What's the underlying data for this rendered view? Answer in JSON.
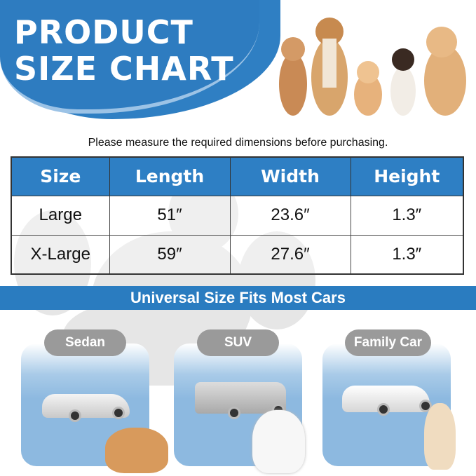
{
  "header": {
    "title_line1": "PRODUCT",
    "title_line2": "SIZE CHART"
  },
  "subtitle": "Please measure the required dimensions before purchasing.",
  "table": {
    "headers": [
      "Size",
      "Length",
      "Width",
      "Height"
    ],
    "rows": [
      [
        "Large",
        "51″",
        "23.6″",
        "1.3″"
      ],
      [
        "X-Large",
        "59″",
        "27.6″",
        "1.3″"
      ]
    ]
  },
  "banner": "Universal Size Fits Most Cars",
  "cars": [
    {
      "label": "Sedan"
    },
    {
      "label": "SUV"
    },
    {
      "label": "Family Car"
    }
  ],
  "colors": {
    "brand_blue": "#2e7fc4",
    "pill_gray": "#9a9a9a",
    "card_blue": "#8db9e0"
  }
}
